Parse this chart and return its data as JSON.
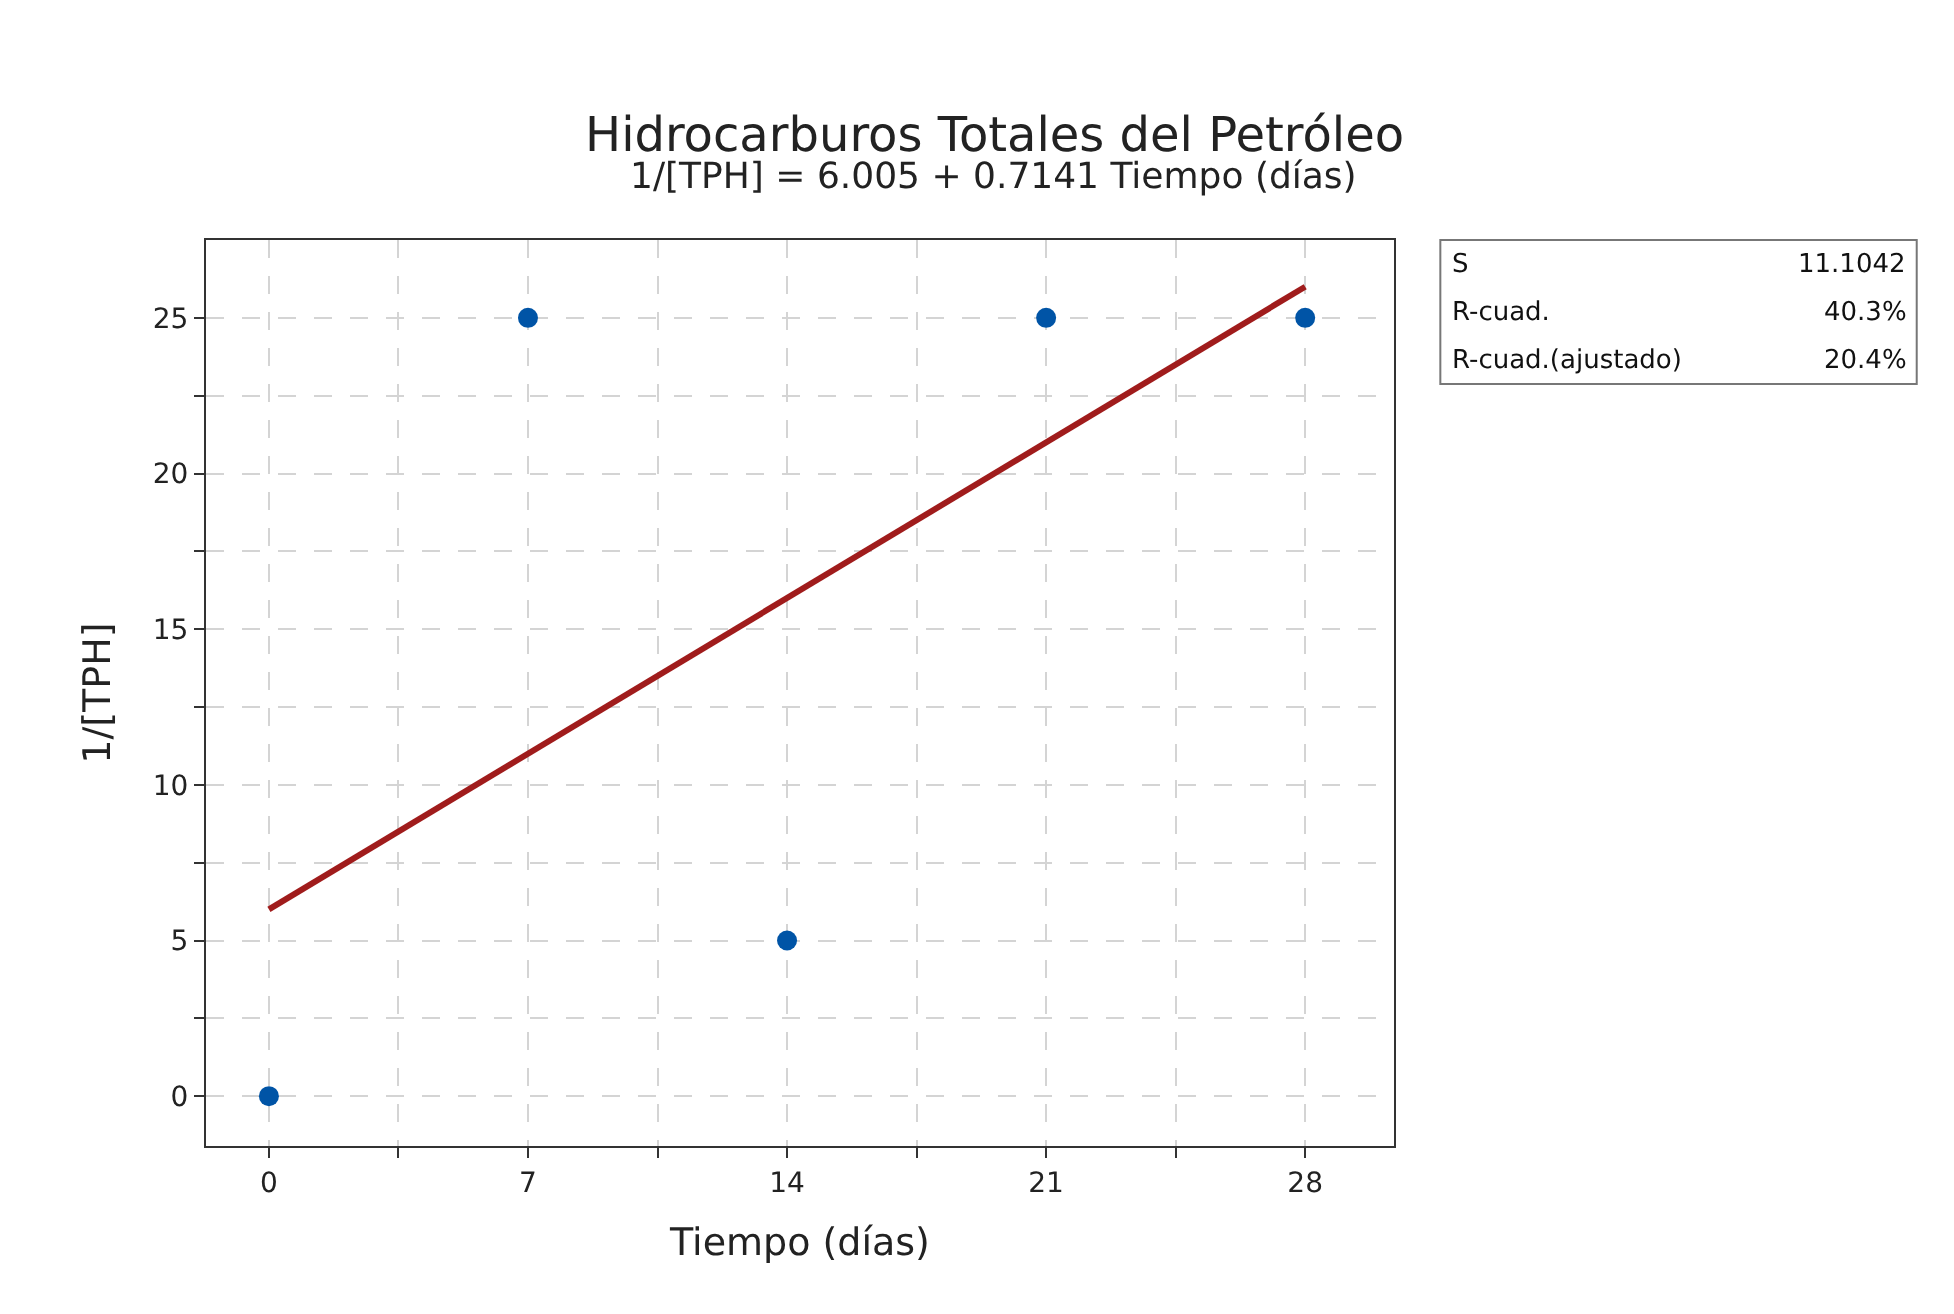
{
  "chart_data": {
    "type": "scatter",
    "title": "Hidrocarburos Totales del Petróleo",
    "subtitle": "1/[TPH] = 6.005 + 0.7141 Tiempo (días)",
    "xlabel": "Tiempo (días)",
    "ylabel": "1/[TPH]",
    "x": [
      0,
      7,
      14,
      21,
      28
    ],
    "series": [
      {
        "color": "#0054a6",
        "values": [
          0,
          25,
          5,
          25,
          25
        ],
        "marker": "circle"
      },
      {
        "type": "line",
        "color": "#a01c1c",
        "x": [
          0,
          28
        ],
        "values": [
          6,
          26
        ],
        "marker": "none",
        "line_style": "solid"
      }
    ],
    "xlim": [
      -1.7,
      30.4
    ],
    "ylim": [
      -1.6,
      27.5
    ],
    "xticks": [
      0,
      {
        "value": 3.5,
        "label": null
      },
      7,
      {
        "value": 10.5,
        "label": null
      },
      14,
      {
        "value": 17.5,
        "label": null
      },
      21,
      {
        "value": 24.5,
        "label": null
      },
      28
    ],
    "yticks": [
      0,
      {
        "value": 2.5,
        "label": null
      },
      5,
      {
        "value": 7.5,
        "label": null
      },
      10,
      {
        "value": 12.5,
        "label": null
      },
      15,
      {
        "value": 17.5,
        "label": null
      },
      20,
      {
        "value": 22.5,
        "label": null
      },
      25
    ],
    "grid": true,
    "annotations": [
      "S",
      "11.1042",
      "R-cuad.",
      "40.3%",
      "R-cuad.(ajustado)",
      "20.4%"
    ]
  }
}
